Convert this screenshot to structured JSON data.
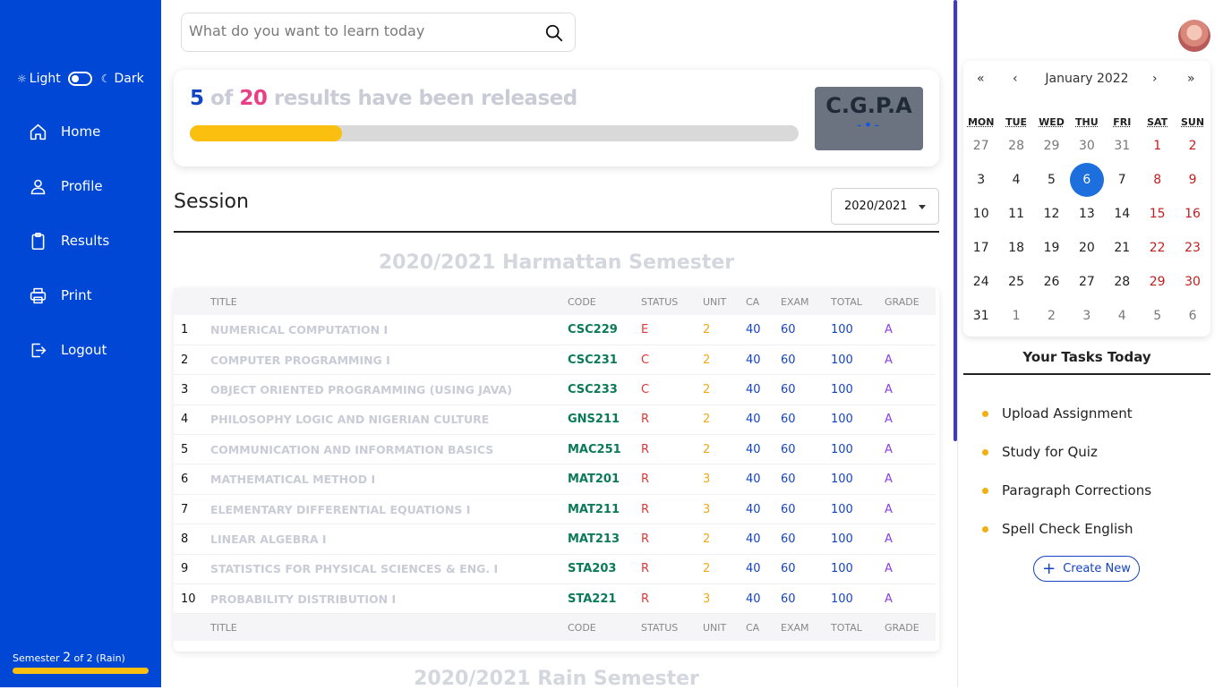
{
  "sidebar": {
    "theme": {
      "light_label": "Light",
      "dark_label": "Dark"
    },
    "nav": [
      {
        "label": "Home",
        "icon": "home-icon"
      },
      {
        "label": "Profile",
        "icon": "user-icon"
      },
      {
        "label": "Results",
        "icon": "clipboard-icon"
      },
      {
        "label": "Print",
        "icon": "printer-icon"
      },
      {
        "label": "Logout",
        "icon": "logout-icon"
      }
    ],
    "semester": {
      "prefix": "Semester",
      "current": "2",
      "suffix": "of 2 (Rain)",
      "progress_fraction": 1.0
    }
  },
  "search": {
    "placeholder": "What do you want to learn today"
  },
  "release": {
    "released": "5",
    "of_label": "of",
    "total": "20",
    "suffix": "results have been released",
    "progress_fraction": 0.25
  },
  "cgpa": {
    "label": "C.G.P.A",
    "value": "-•-"
  },
  "session": {
    "title": "Session",
    "selected": "2020/2021"
  },
  "semester_1": {
    "heading": "2020/2021 Harmattan Semester",
    "columns": [
      "TITLE",
      "CODE",
      "STATUS",
      "UNIT",
      "CA",
      "EXAM",
      "TOTAL",
      "GRADE"
    ],
    "rows": [
      {
        "n": "1",
        "title": "NUMERICAL COMPUTATION I",
        "code": "CSC229",
        "status": "E",
        "unit": "2",
        "ca": "40",
        "exam": "60",
        "total": "100",
        "grade": "A"
      },
      {
        "n": "2",
        "title": "COMPUTER PROGRAMMING I",
        "code": "CSC231",
        "status": "C",
        "unit": "2",
        "ca": "40",
        "exam": "60",
        "total": "100",
        "grade": "A"
      },
      {
        "n": "3",
        "title": "OBJECT ORIENTED PROGRAMMING (USING JAVA)",
        "code": "CSC233",
        "status": "C",
        "unit": "2",
        "ca": "40",
        "exam": "60",
        "total": "100",
        "grade": "A"
      },
      {
        "n": "4",
        "title": "PHILOSOPHY LOGIC AND NIGERIAN CULTURE",
        "code": "GNS211",
        "status": "R",
        "unit": "2",
        "ca": "40",
        "exam": "60",
        "total": "100",
        "grade": "A"
      },
      {
        "n": "5",
        "title": "COMMUNICATION AND INFORMATION BASICS",
        "code": "MAC251",
        "status": "R",
        "unit": "2",
        "ca": "40",
        "exam": "60",
        "total": "100",
        "grade": "A"
      },
      {
        "n": "6",
        "title": "MATHEMATICAL METHOD I",
        "code": "MAT201",
        "status": "R",
        "unit": "3",
        "ca": "40",
        "exam": "60",
        "total": "100",
        "grade": "A"
      },
      {
        "n": "7",
        "title": "ELEMENTARY DIFFERENTIAL EQUATIONS I",
        "code": "MAT211",
        "status": "R",
        "unit": "3",
        "ca": "40",
        "exam": "60",
        "total": "100",
        "grade": "A"
      },
      {
        "n": "8",
        "title": "LINEAR ALGEBRA I",
        "code": "MAT213",
        "status": "R",
        "unit": "2",
        "ca": "40",
        "exam": "60",
        "total": "100",
        "grade": "A"
      },
      {
        "n": "9",
        "title": "STATISTICS FOR PHYSICAL SCIENCES & ENG. I",
        "code": "STA203",
        "status": "R",
        "unit": "2",
        "ca": "40",
        "exam": "60",
        "total": "100",
        "grade": "A"
      },
      {
        "n": "10",
        "title": "PROBABILITY DISTRIBUTION I",
        "code": "STA221",
        "status": "R",
        "unit": "3",
        "ca": "40",
        "exam": "60",
        "total": "100",
        "grade": "A"
      }
    ]
  },
  "semester_2": {
    "heading": "2020/2021 Rain Semester"
  },
  "calendar": {
    "nav": {
      "prev_year": "«",
      "prev_month": "‹",
      "title": "January 2022",
      "next_month": "›",
      "next_year": "»"
    },
    "weekdays": [
      "MON",
      "TUE",
      "WED",
      "THU",
      "FRI",
      "SAT",
      "SUN"
    ],
    "weeks": [
      [
        "27",
        "28",
        "29",
        "30",
        "31",
        "1",
        "2"
      ],
      [
        "3",
        "4",
        "5",
        "6",
        "7",
        "8",
        "9"
      ],
      [
        "10",
        "11",
        "12",
        "13",
        "14",
        "15",
        "16"
      ],
      [
        "17",
        "18",
        "19",
        "20",
        "21",
        "22",
        "23"
      ],
      [
        "24",
        "25",
        "26",
        "27",
        "28",
        "29",
        "30"
      ],
      [
        "31",
        "1",
        "2",
        "3",
        "4",
        "5",
        "6"
      ]
    ],
    "selected_day": "6"
  },
  "tasks": {
    "title": "Your Tasks Today",
    "items": [
      "Upload Assignment",
      "Study for Quiz",
      "Paragraph Corrections",
      "Spell Check English"
    ],
    "create_label": "Create New"
  },
  "colors": {
    "sidebar": "#0047d6",
    "accent_yellow": "#fbbf10",
    "accent_blue": "#1544c2",
    "accent_pink": "#ea3f86",
    "selected_day": "#1c6fdc"
  }
}
